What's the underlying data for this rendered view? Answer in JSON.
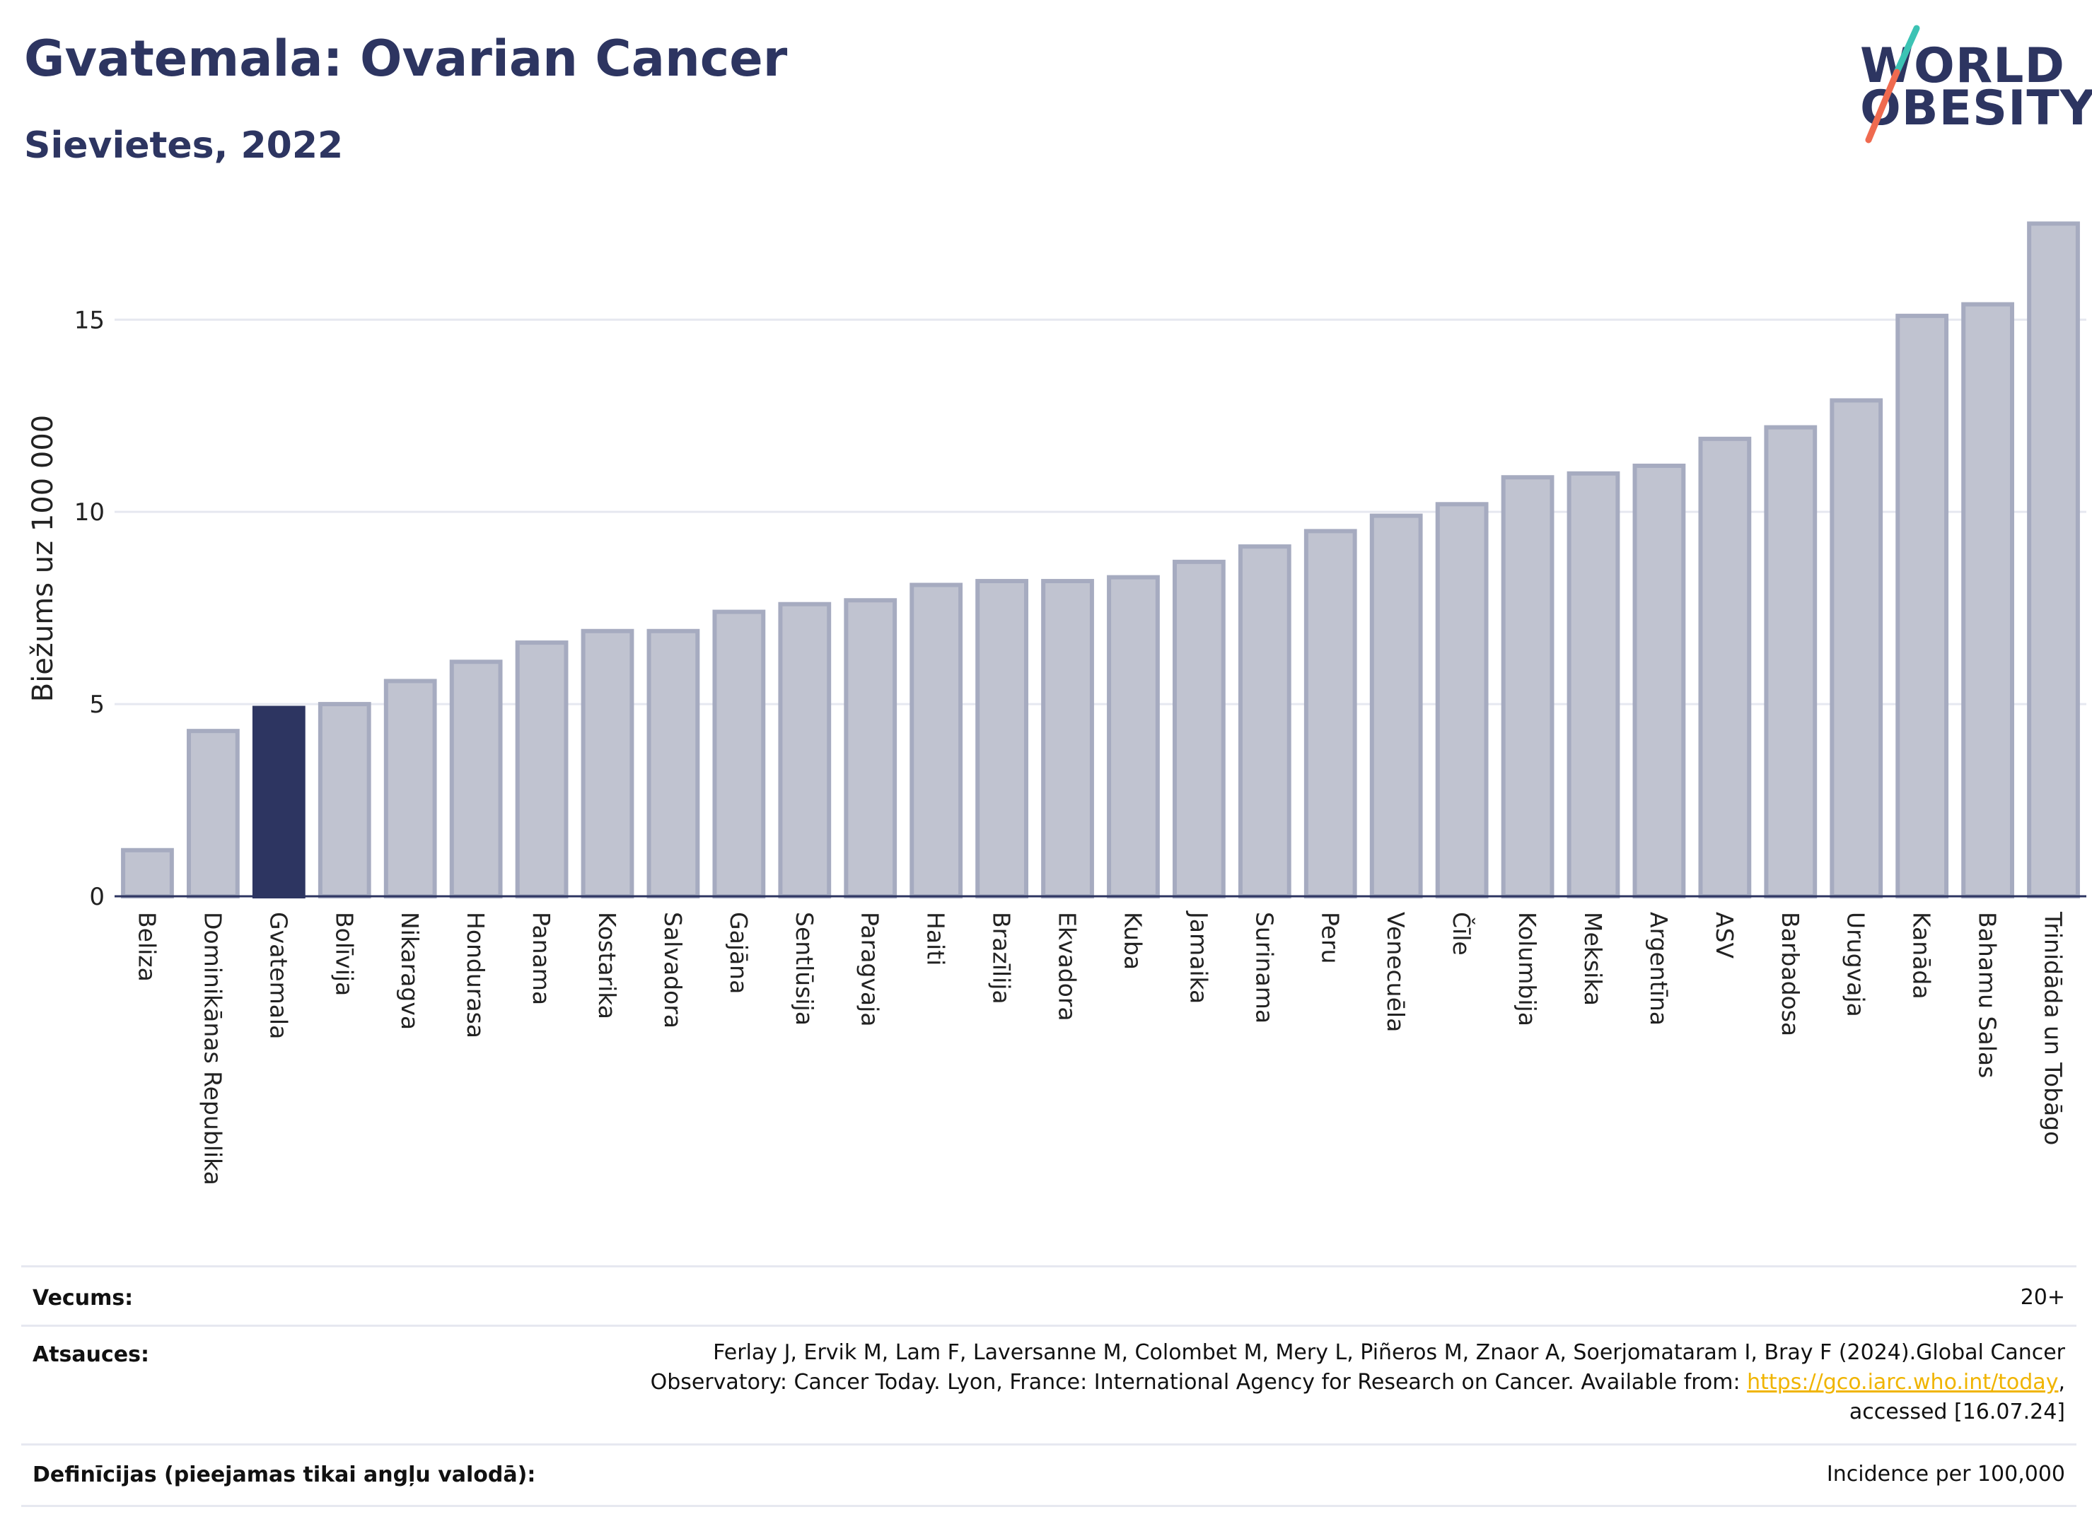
{
  "header": {
    "title": "Gvatemala: Ovarian Cancer",
    "subtitle": "Sievietes, 2022",
    "logo_line1": "WORLD",
    "logo_line2": "OBESITY"
  },
  "colors": {
    "bar_default": "#c0c3d0",
    "bar_default_edge": "#a6abc0",
    "bar_highlight": "#2d3561",
    "grid": "#e6e8f0",
    "axis": "#2d3561",
    "text": "#2d3561",
    "link": "#f0b400",
    "logo_slash_top": "#3cc3b4",
    "logo_slash_bottom": "#ef6a4f"
  },
  "chart_data": {
    "type": "bar",
    "ylabel": "Biežums uz 100 000",
    "xlabel": "",
    "ylim": [
      0,
      17.8
    ],
    "yticks": [
      0,
      5,
      10,
      15
    ],
    "grid": true,
    "highlight": "Gvatemala",
    "categories": [
      "Beliza",
      "Dominikānas Republika",
      "Gvatemala",
      "Bolīvija",
      "Nikaragva",
      "Hondurasa",
      "Panama",
      "Kostarika",
      "Salvadora",
      "Gajāna",
      "Sentlūsija",
      "Paragvaja",
      "Haiti",
      "Brazīlija",
      "Ekvadora",
      "Kuba",
      "Jamaika",
      "Surinama",
      "Peru",
      "Venecuēla",
      "Čīle",
      "Kolumbija",
      "Meksika",
      "Argentīna",
      "ASV",
      "Barbadosa",
      "Urugvaja",
      "Kanāda",
      "Bahamu Salas",
      "Trinidāda un Tobāgo"
    ],
    "values": [
      1.2,
      4.3,
      4.9,
      5.0,
      5.6,
      6.1,
      6.6,
      6.9,
      6.9,
      7.4,
      7.6,
      7.7,
      8.1,
      8.2,
      8.2,
      8.3,
      8.7,
      9.1,
      9.5,
      9.9,
      10.2,
      10.9,
      11.0,
      11.2,
      11.9,
      12.2,
      12.9,
      15.1,
      15.4,
      17.5
    ]
  },
  "meta": {
    "age_label": "Vecums:",
    "age_value": "20+",
    "refs_label": "Atsauces:",
    "refs_line1": "Ferlay J, Ervik M, Lam F, Laversanne M, Colombet M, Mery L, Piñeros M, Znaor A, Soerjomataram I, Bray F (2024).Global Cancer",
    "refs_line2_pre": "Observatory: Cancer Today. Lyon, France: International Agency for Research on Cancer. Available from: ",
    "refs_link": "https://gco.iarc.who.int/today",
    "refs_line2_post": ",",
    "refs_line3": "accessed [16.07.24]",
    "def_label": "Definīcijas (pieejamas tikai angļu valodā):",
    "def_value": "Incidence per 100,000"
  }
}
